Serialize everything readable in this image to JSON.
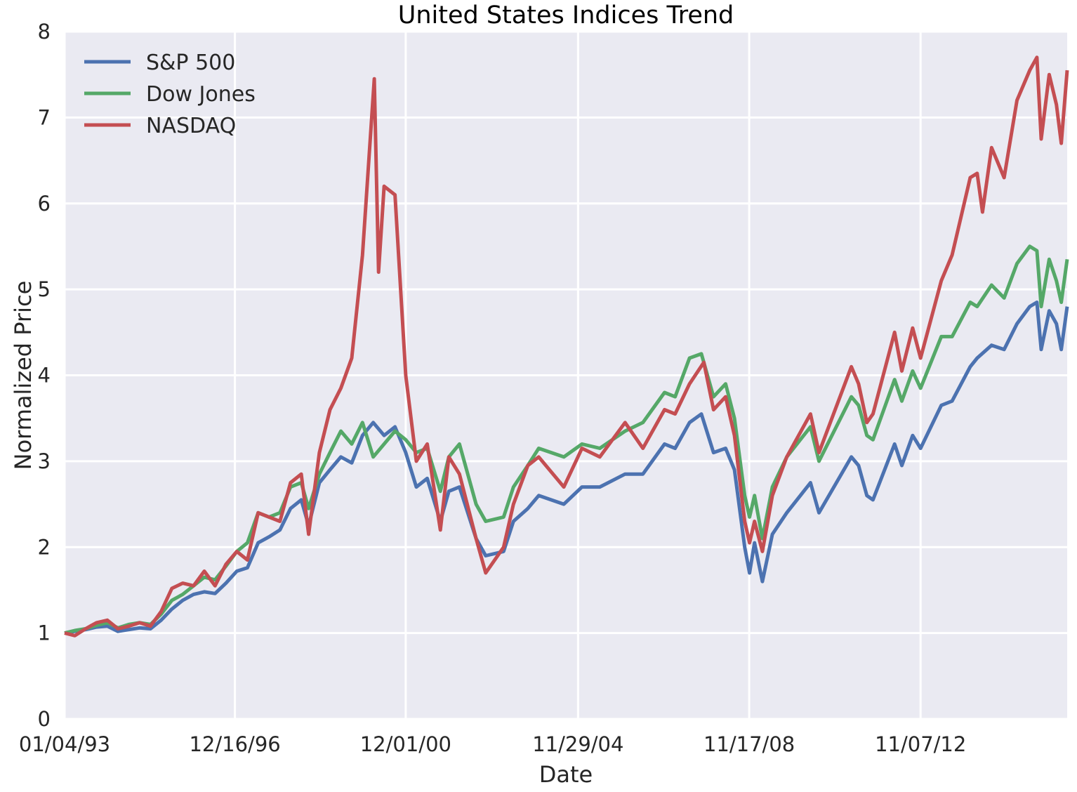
{
  "chart_data": {
    "type": "line",
    "title": "United States Indices Trend",
    "xlabel": "Date",
    "ylabel": "Normalized Price",
    "x_axis": "date",
    "xlim": [
      "1993-01-04",
      "2016-04-01"
    ],
    "ylim": [
      0,
      8
    ],
    "x_ticks": [
      "1993-01-04",
      "1996-12-16",
      "2000-12-01",
      "2004-11-29",
      "2008-11-17",
      "2012-11-07"
    ],
    "x_tick_labels": [
      "01/04/93",
      "12/16/96",
      "12/01/00",
      "11/29/04",
      "11/17/08",
      "11/07/12"
    ],
    "y_ticks": [
      0,
      1,
      2,
      3,
      4,
      5,
      6,
      7,
      8
    ],
    "y_tick_labels": [
      "0",
      "1",
      "2",
      "3",
      "4",
      "5",
      "6",
      "7",
      "8"
    ],
    "grid": true,
    "legend_position": "top-left",
    "background_color": "#EAEAF2",
    "series": [
      {
        "name": "S&P 500",
        "color": "#4C72B0",
        "points": [
          [
            "1993-01-04",
            1.0
          ],
          [
            "1993-04-01",
            1.02
          ],
          [
            "1993-07-01",
            1.04
          ],
          [
            "1993-10-01",
            1.07
          ],
          [
            "1994-01-01",
            1.08
          ],
          [
            "1994-04-01",
            1.02
          ],
          [
            "1994-07-01",
            1.04
          ],
          [
            "1994-10-01",
            1.06
          ],
          [
            "1995-01-01",
            1.05
          ],
          [
            "1995-04-01",
            1.15
          ],
          [
            "1995-07-01",
            1.28
          ],
          [
            "1995-10-01",
            1.38
          ],
          [
            "1996-01-01",
            1.45
          ],
          [
            "1996-04-01",
            1.48
          ],
          [
            "1996-07-01",
            1.46
          ],
          [
            "1996-10-01",
            1.58
          ],
          [
            "1997-01-01",
            1.72
          ],
          [
            "1997-04-01",
            1.76
          ],
          [
            "1997-07-01",
            2.05
          ],
          [
            "1997-10-01",
            2.12
          ],
          [
            "1998-01-01",
            2.2
          ],
          [
            "1998-04-01",
            2.45
          ],
          [
            "1998-07-01",
            2.55
          ],
          [
            "1998-09-01",
            2.25
          ],
          [
            "1998-12-01",
            2.75
          ],
          [
            "1999-03-01",
            2.9
          ],
          [
            "1999-06-01",
            3.05
          ],
          [
            "1999-09-01",
            2.98
          ],
          [
            "1999-12-01",
            3.3
          ],
          [
            "2000-03-01",
            3.45
          ],
          [
            "2000-06-01",
            3.3
          ],
          [
            "2000-09-01",
            3.4
          ],
          [
            "2000-12-01",
            3.1
          ],
          [
            "2001-03-01",
            2.7
          ],
          [
            "2001-06-01",
            2.8
          ],
          [
            "2001-09-20",
            2.3
          ],
          [
            "2001-12-01",
            2.65
          ],
          [
            "2002-03-01",
            2.7
          ],
          [
            "2002-07-20",
            2.1
          ],
          [
            "2002-10-09",
            1.9
          ],
          [
            "2003-03-10",
            1.95
          ],
          [
            "2003-06-01",
            2.3
          ],
          [
            "2003-10-01",
            2.45
          ],
          [
            "2004-01-01",
            2.6
          ],
          [
            "2004-08-01",
            2.5
          ],
          [
            "2005-01-01",
            2.7
          ],
          [
            "2005-06-01",
            2.7
          ],
          [
            "2006-01-01",
            2.85
          ],
          [
            "2006-06-01",
            2.85
          ],
          [
            "2006-12-01",
            3.2
          ],
          [
            "2007-03-01",
            3.15
          ],
          [
            "2007-07-01",
            3.45
          ],
          [
            "2007-10-09",
            3.55
          ],
          [
            "2008-01-20",
            3.1
          ],
          [
            "2008-05-01",
            3.15
          ],
          [
            "2008-07-15",
            2.9
          ],
          [
            "2008-10-10",
            2.0
          ],
          [
            "2008-11-20",
            1.7
          ],
          [
            "2009-01-01",
            2.05
          ],
          [
            "2009-03-09",
            1.6
          ],
          [
            "2009-06-01",
            2.15
          ],
          [
            "2009-10-01",
            2.4
          ],
          [
            "2010-04-20",
            2.75
          ],
          [
            "2010-07-01",
            2.4
          ],
          [
            "2011-04-01",
            3.05
          ],
          [
            "2011-06-01",
            2.95
          ],
          [
            "2011-08-10",
            2.6
          ],
          [
            "2011-10-01",
            2.55
          ],
          [
            "2012-04-01",
            3.2
          ],
          [
            "2012-06-01",
            2.95
          ],
          [
            "2012-09-01",
            3.3
          ],
          [
            "2012-11-07",
            3.15
          ],
          [
            "2013-05-01",
            3.65
          ],
          [
            "2013-08-01",
            3.7
          ],
          [
            "2014-01-01",
            4.1
          ],
          [
            "2014-03-01",
            4.2
          ],
          [
            "2014-07-01",
            4.35
          ],
          [
            "2014-10-15",
            4.3
          ],
          [
            "2015-02-01",
            4.6
          ],
          [
            "2015-05-20",
            4.8
          ],
          [
            "2015-07-20",
            4.85
          ],
          [
            "2015-08-25",
            4.3
          ],
          [
            "2015-11-01",
            4.75
          ],
          [
            "2016-01-01",
            4.6
          ],
          [
            "2016-02-11",
            4.3
          ],
          [
            "2016-04-01",
            4.8
          ]
        ]
      },
      {
        "name": "Dow Jones",
        "color": "#55A868",
        "points": [
          [
            "1993-01-04",
            1.0
          ],
          [
            "1993-04-01",
            1.03
          ],
          [
            "1993-07-01",
            1.05
          ],
          [
            "1993-10-01",
            1.09
          ],
          [
            "1994-01-01",
            1.12
          ],
          [
            "1994-04-01",
            1.06
          ],
          [
            "1994-07-01",
            1.1
          ],
          [
            "1994-10-01",
            1.12
          ],
          [
            "1995-01-01",
            1.1
          ],
          [
            "1995-04-01",
            1.22
          ],
          [
            "1995-07-01",
            1.38
          ],
          [
            "1995-10-01",
            1.45
          ],
          [
            "1996-01-01",
            1.55
          ],
          [
            "1996-04-01",
            1.65
          ],
          [
            "1996-07-01",
            1.62
          ],
          [
            "1996-10-01",
            1.78
          ],
          [
            "1997-01-01",
            1.95
          ],
          [
            "1997-04-01",
            2.05
          ],
          [
            "1997-07-01",
            2.4
          ],
          [
            "1997-10-01",
            2.35
          ],
          [
            "1998-01-01",
            2.4
          ],
          [
            "1998-04-01",
            2.7
          ],
          [
            "1998-07-01",
            2.75
          ],
          [
            "1998-09-01",
            2.45
          ],
          [
            "1998-12-01",
            2.85
          ],
          [
            "1999-03-01",
            3.1
          ],
          [
            "1999-06-01",
            3.35
          ],
          [
            "1999-09-01",
            3.2
          ],
          [
            "1999-12-01",
            3.45
          ],
          [
            "2000-03-01",
            3.05
          ],
          [
            "2000-06-01",
            3.2
          ],
          [
            "2000-09-01",
            3.35
          ],
          [
            "2000-12-01",
            3.25
          ],
          [
            "2001-03-01",
            3.1
          ],
          [
            "2001-06-01",
            3.15
          ],
          [
            "2001-09-20",
            2.65
          ],
          [
            "2001-12-01",
            3.05
          ],
          [
            "2002-03-01",
            3.2
          ],
          [
            "2002-07-20",
            2.5
          ],
          [
            "2002-10-09",
            2.3
          ],
          [
            "2003-03-10",
            2.35
          ],
          [
            "2003-06-01",
            2.7
          ],
          [
            "2003-10-01",
            2.95
          ],
          [
            "2004-01-01",
            3.15
          ],
          [
            "2004-08-01",
            3.05
          ],
          [
            "2005-01-01",
            3.2
          ],
          [
            "2005-06-01",
            3.15
          ],
          [
            "2006-01-01",
            3.35
          ],
          [
            "2006-06-01",
            3.45
          ],
          [
            "2006-12-01",
            3.8
          ],
          [
            "2007-03-01",
            3.75
          ],
          [
            "2007-07-01",
            4.2
          ],
          [
            "2007-10-09",
            4.25
          ],
          [
            "2008-01-20",
            3.75
          ],
          [
            "2008-05-01",
            3.9
          ],
          [
            "2008-07-15",
            3.5
          ],
          [
            "2008-10-10",
            2.6
          ],
          [
            "2008-11-20",
            2.35
          ],
          [
            "2009-01-01",
            2.6
          ],
          [
            "2009-03-09",
            2.1
          ],
          [
            "2009-06-01",
            2.7
          ],
          [
            "2009-10-01",
            3.05
          ],
          [
            "2010-04-20",
            3.4
          ],
          [
            "2010-07-01",
            3.0
          ],
          [
            "2011-04-01",
            3.75
          ],
          [
            "2011-06-01",
            3.65
          ],
          [
            "2011-08-10",
            3.3
          ],
          [
            "2011-10-01",
            3.25
          ],
          [
            "2012-04-01",
            3.95
          ],
          [
            "2012-06-01",
            3.7
          ],
          [
            "2012-09-01",
            4.05
          ],
          [
            "2012-11-07",
            3.85
          ],
          [
            "2013-05-01",
            4.45
          ],
          [
            "2013-08-01",
            4.45
          ],
          [
            "2014-01-01",
            4.85
          ],
          [
            "2014-03-01",
            4.8
          ],
          [
            "2014-07-01",
            5.05
          ],
          [
            "2014-10-15",
            4.9
          ],
          [
            "2015-02-01",
            5.3
          ],
          [
            "2015-05-20",
            5.5
          ],
          [
            "2015-07-20",
            5.45
          ],
          [
            "2015-08-25",
            4.8
          ],
          [
            "2015-11-01",
            5.35
          ],
          [
            "2016-01-01",
            5.1
          ],
          [
            "2016-02-11",
            4.85
          ],
          [
            "2016-04-01",
            5.35
          ]
        ]
      },
      {
        "name": "NASDAQ",
        "color": "#C44E52",
        "points": [
          [
            "1993-01-04",
            1.0
          ],
          [
            "1993-04-01",
            0.97
          ],
          [
            "1993-07-01",
            1.05
          ],
          [
            "1993-10-01",
            1.12
          ],
          [
            "1994-01-01",
            1.15
          ],
          [
            "1994-04-01",
            1.05
          ],
          [
            "1994-07-01",
            1.08
          ],
          [
            "1994-10-01",
            1.12
          ],
          [
            "1995-01-01",
            1.08
          ],
          [
            "1995-04-01",
            1.25
          ],
          [
            "1995-07-01",
            1.52
          ],
          [
            "1995-10-01",
            1.58
          ],
          [
            "1996-01-01",
            1.55
          ],
          [
            "1996-04-01",
            1.72
          ],
          [
            "1996-07-01",
            1.55
          ],
          [
            "1996-10-01",
            1.8
          ],
          [
            "1997-01-01",
            1.95
          ],
          [
            "1997-04-01",
            1.85
          ],
          [
            "1997-07-01",
            2.4
          ],
          [
            "1997-10-01",
            2.35
          ],
          [
            "1998-01-01",
            2.3
          ],
          [
            "1998-04-01",
            2.75
          ],
          [
            "1998-07-01",
            2.85
          ],
          [
            "1998-09-01",
            2.15
          ],
          [
            "1998-12-01",
            3.1
          ],
          [
            "1999-03-01",
            3.6
          ],
          [
            "1999-06-01",
            3.85
          ],
          [
            "1999-09-01",
            4.2
          ],
          [
            "1999-12-01",
            5.4
          ],
          [
            "2000-03-10",
            7.45
          ],
          [
            "2000-04-15",
            5.2
          ],
          [
            "2000-06-01",
            6.2
          ],
          [
            "2000-09-01",
            6.1
          ],
          [
            "2000-12-01",
            4.0
          ],
          [
            "2001-03-01",
            3.0
          ],
          [
            "2001-06-01",
            3.2
          ],
          [
            "2001-09-20",
            2.2
          ],
          [
            "2001-12-01",
            3.05
          ],
          [
            "2002-03-01",
            2.85
          ],
          [
            "2002-07-20",
            2.1
          ],
          [
            "2002-10-09",
            1.7
          ],
          [
            "2003-03-10",
            2.0
          ],
          [
            "2003-06-01",
            2.5
          ],
          [
            "2003-10-01",
            2.95
          ],
          [
            "2004-01-01",
            3.05
          ],
          [
            "2004-08-01",
            2.7
          ],
          [
            "2005-01-01",
            3.15
          ],
          [
            "2005-06-01",
            3.05
          ],
          [
            "2006-01-01",
            3.45
          ],
          [
            "2006-06-01",
            3.15
          ],
          [
            "2006-12-01",
            3.6
          ],
          [
            "2007-03-01",
            3.55
          ],
          [
            "2007-07-01",
            3.9
          ],
          [
            "2007-10-30",
            4.15
          ],
          [
            "2008-01-20",
            3.6
          ],
          [
            "2008-05-01",
            3.75
          ],
          [
            "2008-07-15",
            3.3
          ],
          [
            "2008-10-10",
            2.3
          ],
          [
            "2008-11-20",
            2.05
          ],
          [
            "2009-01-01",
            2.3
          ],
          [
            "2009-03-09",
            1.95
          ],
          [
            "2009-06-01",
            2.6
          ],
          [
            "2009-10-01",
            3.05
          ],
          [
            "2010-04-20",
            3.55
          ],
          [
            "2010-07-01",
            3.1
          ],
          [
            "2011-04-01",
            4.1
          ],
          [
            "2011-06-01",
            3.9
          ],
          [
            "2011-08-10",
            3.45
          ],
          [
            "2011-10-01",
            3.55
          ],
          [
            "2012-04-01",
            4.5
          ],
          [
            "2012-06-01",
            4.05
          ],
          [
            "2012-09-01",
            4.55
          ],
          [
            "2012-11-07",
            4.2
          ],
          [
            "2013-05-01",
            5.1
          ],
          [
            "2013-08-01",
            5.4
          ],
          [
            "2014-01-01",
            6.3
          ],
          [
            "2014-03-01",
            6.35
          ],
          [
            "2014-04-15",
            5.9
          ],
          [
            "2014-07-01",
            6.65
          ],
          [
            "2014-10-15",
            6.3
          ],
          [
            "2015-02-01",
            7.2
          ],
          [
            "2015-05-20",
            7.55
          ],
          [
            "2015-07-20",
            7.7
          ],
          [
            "2015-08-25",
            6.75
          ],
          [
            "2015-11-01",
            7.5
          ],
          [
            "2016-01-01",
            7.15
          ],
          [
            "2016-02-11",
            6.7
          ],
          [
            "2016-04-01",
            7.55
          ]
        ]
      }
    ]
  }
}
